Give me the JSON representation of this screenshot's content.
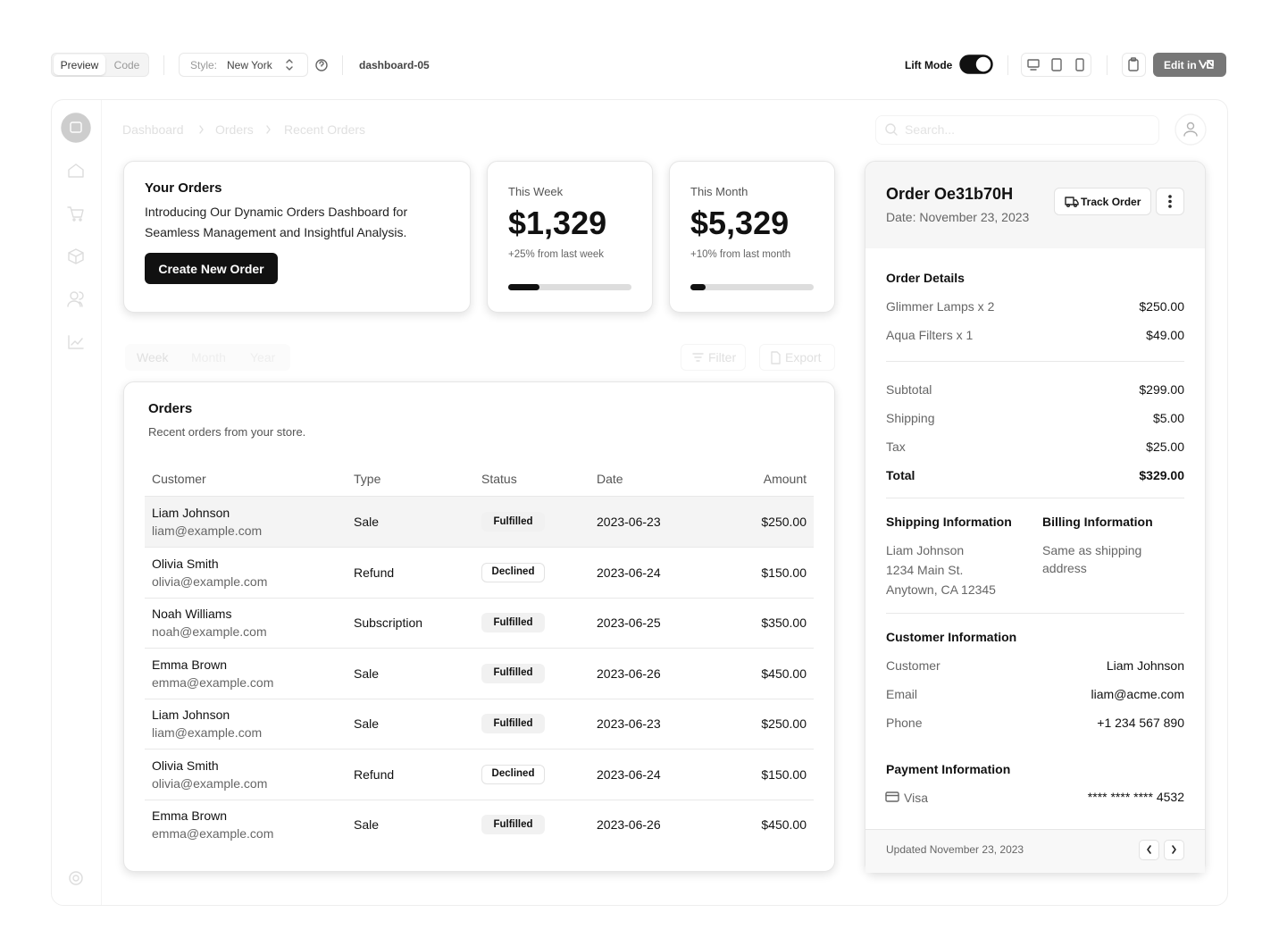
{
  "toolbar": {
    "view_tabs": [
      "Preview",
      "Code"
    ],
    "style_label": "Style:",
    "style_value": "New York",
    "block_name": "dashboard-05",
    "lift_mode": "Lift Mode",
    "edit_button": "Edit in"
  },
  "breadcrumb": [
    "Dashboard",
    "Orders",
    "Recent Orders"
  ],
  "search_placeholder": "Search...",
  "intro_card": {
    "title": "Your Orders",
    "description": "Introducing Our Dynamic Orders Dashboard for Seamless Management and Insightful Analysis.",
    "button": "Create New Order"
  },
  "stat_cards": [
    {
      "label": "This Week",
      "value": "$1,329",
      "change": "+25% from last week",
      "progress": 25
    },
    {
      "label": "This Month",
      "value": "$5,329",
      "change": "+10% from last month",
      "progress": 12
    }
  ],
  "period_tabs": [
    "Week",
    "Month",
    "Year"
  ],
  "filter_button": "Filter",
  "export_button": "Export",
  "orders_table": {
    "title": "Orders",
    "description": "Recent orders from your store.",
    "columns": [
      "Customer",
      "Type",
      "Status",
      "Date",
      "Amount"
    ],
    "rows": [
      {
        "customer": "Liam Johnson",
        "email": "liam@example.com",
        "type": "Sale",
        "status": "Fulfilled",
        "date": "2023-06-23",
        "amount": "$250.00"
      },
      {
        "customer": "Olivia Smith",
        "email": "olivia@example.com",
        "type": "Refund",
        "status": "Declined",
        "date": "2023-06-24",
        "amount": "$150.00"
      },
      {
        "customer": "Noah Williams",
        "email": "noah@example.com",
        "type": "Subscription",
        "status": "Fulfilled",
        "date": "2023-06-25",
        "amount": "$350.00"
      },
      {
        "customer": "Emma Brown",
        "email": "emma@example.com",
        "type": "Sale",
        "status": "Fulfilled",
        "date": "2023-06-26",
        "amount": "$450.00"
      },
      {
        "customer": "Liam Johnson",
        "email": "liam@example.com",
        "type": "Sale",
        "status": "Fulfilled",
        "date": "2023-06-23",
        "amount": "$250.00"
      },
      {
        "customer": "Olivia Smith",
        "email": "olivia@example.com",
        "type": "Refund",
        "status": "Declined",
        "date": "2023-06-24",
        "amount": "$150.00"
      },
      {
        "customer": "Emma Brown",
        "email": "emma@example.com",
        "type": "Sale",
        "status": "Fulfilled",
        "date": "2023-06-26",
        "amount": "$450.00"
      }
    ]
  },
  "order_panel": {
    "title": "Order Oe31b70H",
    "date": "Date: November 23, 2023",
    "track_button": "Track Order",
    "details_heading": "Order Details",
    "items": [
      {
        "label": "Glimmer Lamps x 2",
        "value": "$250.00"
      },
      {
        "label": "Aqua Filters x 1",
        "value": "$49.00"
      }
    ],
    "summary": [
      {
        "label": "Subtotal",
        "value": "$299.00"
      },
      {
        "label": "Shipping",
        "value": "$5.00"
      },
      {
        "label": "Tax",
        "value": "$25.00"
      },
      {
        "label": "Total",
        "value": "$329.00"
      }
    ],
    "shipping_heading": "Shipping Information",
    "shipping_address": [
      "Liam Johnson",
      "1234 Main St.",
      "Anytown, CA 12345"
    ],
    "billing_heading": "Billing Information",
    "billing_address": "Same as shipping address",
    "customer_heading": "Customer Information",
    "customer_fields": [
      {
        "label": "Customer",
        "value": "Liam Johnson"
      },
      {
        "label": "Email",
        "value": "liam@acme.com"
      },
      {
        "label": "Phone",
        "value": "+1 234 567 890"
      }
    ],
    "payment_heading": "Payment Information",
    "payment_method": "Visa",
    "card_number": "**** **** **** 4532",
    "updated": "Updated November 23, 2023"
  }
}
